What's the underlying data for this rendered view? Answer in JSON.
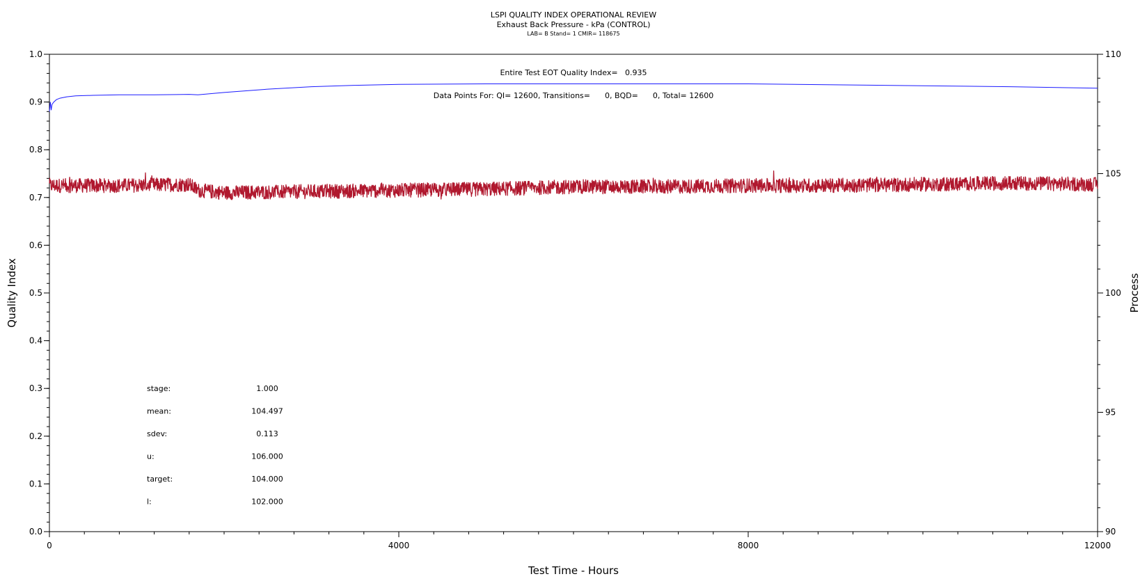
{
  "chart_data": {
    "type": "line",
    "title": "LSPI QUALITY INDEX OPERATIONAL REVIEW",
    "subtitle": "Exhaust Back Pressure - kPa (CONTROL)",
    "subtitle2": "LAB= B Stand= 1 CMIR= 118675",
    "xlabel": "Test Time - Hours",
    "ylabel_left": "Quality Index",
    "ylabel_right": "Process",
    "xlim": [
      0,
      12000
    ],
    "ylim_left": [
      0,
      1
    ],
    "ylim_right": [
      90,
      110
    ],
    "x_ticks": [
      0,
      4000,
      8000,
      12000
    ],
    "x_tick_labels": [
      "0",
      "4000",
      "8000",
      "12000"
    ],
    "y_left_ticks": [
      0.0,
      0.1,
      0.2,
      0.3,
      0.4,
      0.5,
      0.6,
      0.7,
      0.8,
      0.9,
      1.0
    ],
    "y_left_tick_labels": [
      "0.0",
      "0.1",
      "0.2",
      "0.3",
      "0.4",
      "0.5",
      "0.6",
      "0.7",
      "0.8",
      "0.9",
      "1.0"
    ],
    "y_right_ticks": [
      90,
      95,
      100,
      105,
      110
    ],
    "y_right_tick_labels": [
      "90",
      "95",
      "100",
      "105",
      "110"
    ],
    "annotation_qi": "Entire Test EOT Quality Index=   0.935",
    "annotation_points": "Data Points For: QI= 12600, Transitions=      0, BQD=      0, Total= 12600",
    "series": [
      {
        "color": "#1a1aff",
        "axis": "left",
        "x": [
          0,
          10,
          20,
          30,
          50,
          80,
          120,
          200,
          300,
          500,
          800,
          1200,
          1600,
          1700,
          2000,
          2500,
          3000,
          3500,
          4000,
          5000,
          6000,
          7000,
          8000,
          9000,
          10000,
          11000,
          12000
        ],
        "y": [
          0.88,
          0.9,
          0.883,
          0.895,
          0.9,
          0.905,
          0.908,
          0.911,
          0.913,
          0.914,
          0.915,
          0.915,
          0.916,
          0.915,
          0.92,
          0.927,
          0.932,
          0.935,
          0.937,
          0.938,
          0.938,
          0.938,
          0.938,
          0.936,
          0.934,
          0.932,
          0.929
        ]
      },
      {
        "color": "#b0182e",
        "axis": "right",
        "x": [
          0,
          800,
          1600,
          1700,
          2000,
          3000,
          4000,
          5000,
          6000,
          7000,
          8000,
          9000,
          10000,
          11000,
          12000
        ],
        "y": [
          104.5,
          104.5,
          104.55,
          104.3,
          104.2,
          104.25,
          104.3,
          104.35,
          104.45,
          104.45,
          104.5,
          104.5,
          104.55,
          104.6,
          104.55
        ],
        "noise_amplitude": 0.3
      }
    ],
    "stats": [
      {
        "label": "stage:",
        "value": "1.000"
      },
      {
        "label": "mean:",
        "value": "104.497"
      },
      {
        "label": "sdev:",
        "value": "0.113"
      },
      {
        "label": "u:",
        "value": "106.000"
      },
      {
        "label": "target:",
        "value": "104.000"
      },
      {
        "label": "l:",
        "value": "102.000"
      }
    ]
  }
}
